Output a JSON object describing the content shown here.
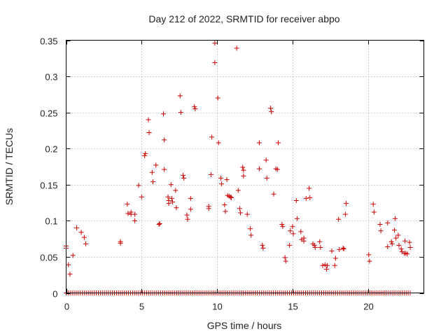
{
  "chart_data": {
    "type": "scatter",
    "title": "Day 212 of 2022, SRMTID for receiver abpo",
    "xlabel": "GPS time / hours",
    "ylabel": "SRMTID / TECUs",
    "xlim": [
      0,
      23.7
    ],
    "ylim": [
      0,
      0.35
    ],
    "xticks": [
      0,
      5,
      10,
      15,
      20
    ],
    "yticks": [
      0,
      0.05,
      0.1,
      0.15,
      0.2,
      0.25,
      0.3,
      0.35
    ],
    "grid": true,
    "marker": "plus",
    "color": "#cc0000",
    "series": [
      {
        "name": "SRMTID",
        "points": [
          [
            0.0,
            0.062
          ],
          [
            0.0,
            0.065
          ],
          [
            0.15,
            0.039
          ],
          [
            0.25,
            0.026
          ],
          [
            0.45,
            0.052
          ],
          [
            0.7,
            0.09
          ],
          [
            1.0,
            0.084
          ],
          [
            1.2,
            0.077
          ],
          [
            1.3,
            0.068
          ],
          [
            3.6,
            0.071
          ],
          [
            3.6,
            0.069
          ],
          [
            4.05,
            0.123
          ],
          [
            4.1,
            0.11
          ],
          [
            4.3,
            0.112
          ],
          [
            4.3,
            0.109
          ],
          [
            4.55,
            0.109
          ],
          [
            4.55,
            0.1
          ],
          [
            4.8,
            0.149
          ],
          [
            5.0,
            0.133
          ],
          [
            5.2,
            0.19
          ],
          [
            5.25,
            0.193
          ],
          [
            5.45,
            0.24
          ],
          [
            5.5,
            0.222
          ],
          [
            5.7,
            0.167
          ],
          [
            5.75,
            0.154
          ],
          [
            5.95,
            0.177
          ],
          [
            6.15,
            0.095
          ],
          [
            6.2,
            0.096
          ],
          [
            6.45,
            0.248
          ],
          [
            6.5,
            0.212
          ],
          [
            6.5,
            0.171
          ],
          [
            6.75,
            0.133
          ],
          [
            6.8,
            0.128
          ],
          [
            6.8,
            0.124
          ],
          [
            6.95,
            0.15
          ],
          [
            7.0,
            0.131
          ],
          [
            7.05,
            0.126
          ],
          [
            7.25,
            0.142
          ],
          [
            7.3,
            0.118
          ],
          [
            7.55,
            0.273
          ],
          [
            7.6,
            0.25
          ],
          [
            7.75,
            0.163
          ],
          [
            7.8,
            0.159
          ],
          [
            8.0,
            0.108
          ],
          [
            8.05,
            0.102
          ],
          [
            8.25,
            0.131
          ],
          [
            8.25,
            0.116
          ],
          [
            8.5,
            0.258
          ],
          [
            8.55,
            0.255
          ],
          [
            9.45,
            0.12
          ],
          [
            9.45,
            0.117
          ],
          [
            9.6,
            0.164
          ],
          [
            9.65,
            0.216
          ],
          [
            9.85,
            0.346
          ],
          [
            9.85,
            0.319
          ],
          [
            10.05,
            0.27
          ],
          [
            10.1,
            0.208
          ],
          [
            10.25,
            0.159
          ],
          [
            10.3,
            0.151
          ],
          [
            10.5,
            0.122
          ],
          [
            10.55,
            0.113
          ],
          [
            10.65,
            0.157
          ],
          [
            10.7,
            0.135
          ],
          [
            10.8,
            0.134
          ],
          [
            10.9,
            0.133
          ],
          [
            10.95,
            0.132
          ],
          [
            11.3,
            0.339
          ],
          [
            11.4,
            0.142
          ],
          [
            11.5,
            0.117
          ],
          [
            11.55,
            0.111
          ],
          [
            11.7,
            0.174
          ],
          [
            11.75,
            0.17
          ],
          [
            11.75,
            0.162
          ],
          [
            12.0,
            0.109
          ],
          [
            12.2,
            0.089
          ],
          [
            12.25,
            0.08
          ],
          [
            12.8,
            0.208
          ],
          [
            12.8,
            0.172
          ],
          [
            13.0,
            0.066
          ],
          [
            13.05,
            0.062
          ],
          [
            13.25,
            0.184
          ],
          [
            13.3,
            0.159
          ],
          [
            13.55,
            0.256
          ],
          [
            13.6,
            0.251
          ],
          [
            13.75,
            0.137
          ],
          [
            13.9,
            0.172
          ],
          [
            14.0,
            0.171
          ],
          [
            14.05,
            0.208
          ],
          [
            14.3,
            0.095
          ],
          [
            14.35,
            0.092
          ],
          [
            14.5,
            0.049
          ],
          [
            14.55,
            0.044
          ],
          [
            14.8,
            0.066
          ],
          [
            14.85,
            0.086
          ],
          [
            15.0,
            0.092
          ],
          [
            15.05,
            0.082
          ],
          [
            15.25,
            0.128
          ],
          [
            15.3,
            0.103
          ],
          [
            15.55,
            0.085
          ],
          [
            15.6,
            0.074
          ],
          [
            15.75,
            0.076
          ],
          [
            15.75,
            0.072
          ],
          [
            15.9,
            0.131
          ],
          [
            16.1,
            0.145
          ],
          [
            16.15,
            0.132
          ],
          [
            16.35,
            0.068
          ],
          [
            16.45,
            0.066
          ],
          [
            16.5,
            0.063
          ],
          [
            16.8,
            0.071
          ],
          [
            16.85,
            0.063
          ],
          [
            17.0,
            0.038
          ],
          [
            17.15,
            0.039
          ],
          [
            17.25,
            0.033
          ],
          [
            17.3,
            0.038
          ],
          [
            17.6,
            0.058
          ],
          [
            17.8,
            0.038
          ],
          [
            17.85,
            0.048
          ],
          [
            18.05,
            0.102
          ],
          [
            18.1,
            0.06
          ],
          [
            18.35,
            0.062
          ],
          [
            18.4,
            0.061
          ],
          [
            18.5,
            0.109
          ],
          [
            18.55,
            0.124
          ],
          [
            20.05,
            0.053
          ],
          [
            20.1,
            0.044
          ],
          [
            20.35,
            0.123
          ],
          [
            20.4,
            0.112
          ],
          [
            20.8,
            0.095
          ],
          [
            20.85,
            0.086
          ],
          [
            21.3,
            0.097
          ],
          [
            21.3,
            0.064
          ],
          [
            21.55,
            0.071
          ],
          [
            21.6,
            0.068
          ],
          [
            21.75,
            0.087
          ],
          [
            21.8,
            0.103
          ],
          [
            21.85,
            0.076
          ],
          [
            22.0,
            0.08
          ],
          [
            22.05,
            0.066
          ],
          [
            22.2,
            0.061
          ],
          [
            22.25,
            0.057
          ],
          [
            22.4,
            0.055
          ],
          [
            22.45,
            0.072
          ],
          [
            22.5,
            0.055
          ],
          [
            22.6,
            0.054
          ],
          [
            22.75,
            0.07
          ],
          [
            22.8,
            0.063
          ]
        ]
      },
      {
        "name": "zero-baseline",
        "x_start": 0.0,
        "x_end": 22.85,
        "x_step": 0.1333,
        "y": 0
      }
    ]
  }
}
